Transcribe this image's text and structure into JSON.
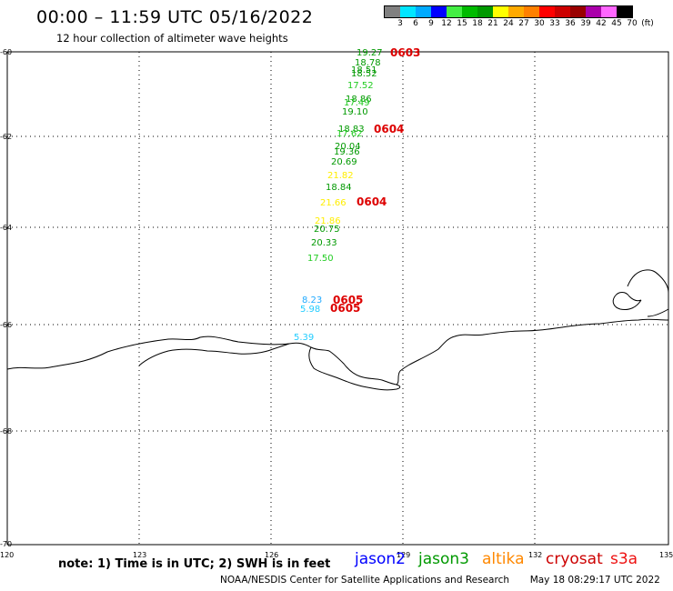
{
  "header": {
    "title": "00:00 – 11:59 UTC 05/16/2022",
    "subtitle": "12 hour collection of altimeter wave heights"
  },
  "legend": {
    "colors": [
      "#808080",
      "#00e5ff",
      "#00aaff",
      "#0000ff",
      "#44ee44",
      "#00bb00",
      "#009900",
      "#ffff00",
      "#ffaa00",
      "#ff8000",
      "#ff0000",
      "#cc0000",
      "#990000",
      "#aa00aa",
      "#ff66ff",
      "#000000"
    ],
    "labels": [
      "3",
      "6",
      "9",
      "12",
      "15",
      "18",
      "21",
      "24",
      "27",
      "30",
      "33",
      "36",
      "39",
      "42",
      "45",
      "70",
      "(ft)"
    ]
  },
  "axes": {
    "y_labels": [
      "-60",
      "-62",
      "-64",
      "-66",
      "-68",
      "-70"
    ],
    "x_labels": [
      "120",
      "123",
      "126",
      "129",
      "132",
      "135"
    ]
  },
  "observations": [
    {
      "text": "19.27",
      "color": "#009900"
    },
    {
      "text": "18.78",
      "color": "#009900"
    },
    {
      "text": "18.51",
      "color": "#009900"
    },
    {
      "text": "18.52",
      "color": "#009900"
    },
    {
      "text": "17.52",
      "color": "#22cc22"
    },
    {
      "text": "18.86",
      "color": "#009900"
    },
    {
      "text": "17.49",
      "color": "#22cc22"
    },
    {
      "text": "19.10",
      "color": "#009900"
    },
    {
      "text": "18.83",
      "color": "#009900"
    },
    {
      "text": "17.62",
      "color": "#22cc22"
    },
    {
      "text": "20.04",
      "color": "#009900"
    },
    {
      "text": "19.36",
      "color": "#009900"
    },
    {
      "text": "20.69",
      "color": "#009900"
    },
    {
      "text": "21.82",
      "color": "#ffee00"
    },
    {
      "text": "18.84",
      "color": "#009900"
    },
    {
      "text": "21.66",
      "color": "#ffee00"
    },
    {
      "text": "21.86",
      "color": "#ffee00"
    },
    {
      "text": "20.75",
      "color": "#009900"
    },
    {
      "text": "20.33",
      "color": "#009900"
    },
    {
      "text": "17.50",
      "color": "#22cc22"
    },
    {
      "text": "8.23",
      "color": "#22aaff"
    },
    {
      "text": "5.98",
      "color": "#22ccff"
    },
    {
      "text": "5.39",
      "color": "#22ccff"
    }
  ],
  "time_labels": [
    "0603",
    "0604",
    "0604",
    "0605",
    "0605"
  ],
  "note": "note: 1) Time is in UTC; 2) SWH is in feet",
  "satellites": [
    {
      "name": "jason2",
      "color": "#0000ff"
    },
    {
      "name": "jason3",
      "color": "#009900"
    },
    {
      "name": "altika",
      "color": "#ff8800"
    },
    {
      "name": "cryosat",
      "color": "#cc0000"
    },
    {
      "name": "s3a",
      "color": "#ee1111"
    }
  ],
  "footer": {
    "credit": "NOAA/NESDIS Center for Satellite Applications and Research",
    "timestamp": "May 18 08:29:17 UTC 2022"
  }
}
